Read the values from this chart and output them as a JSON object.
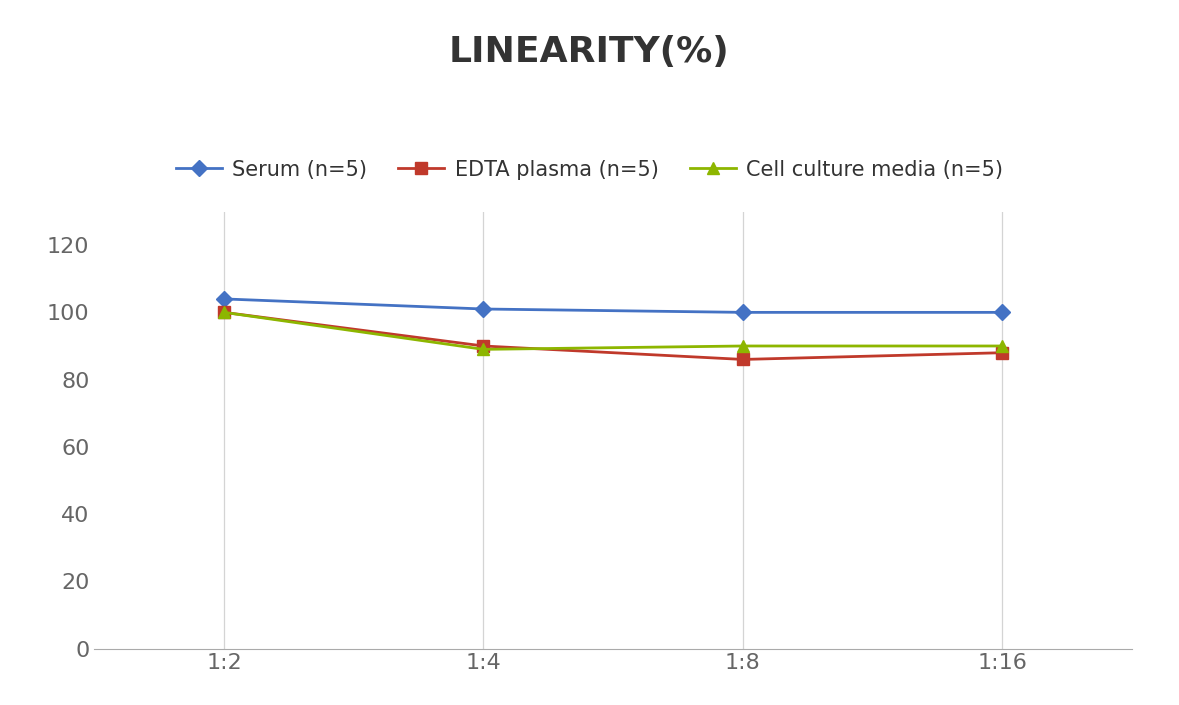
{
  "title": "LINEARITY(%)",
  "x_labels": [
    "1:2",
    "1:4",
    "1:8",
    "1:16"
  ],
  "x_positions": [
    0,
    1,
    2,
    3
  ],
  "series": [
    {
      "name": "Serum (n=5)",
      "values": [
        104,
        101,
        100,
        100
      ],
      "color": "#4472C4",
      "marker": "D",
      "linewidth": 2,
      "markersize": 8
    },
    {
      "name": "EDTA plasma (n=5)",
      "values": [
        100,
        90,
        86,
        88
      ],
      "color": "#C0392B",
      "marker": "s",
      "linewidth": 2,
      "markersize": 8
    },
    {
      "name": "Cell culture media (n=5)",
      "values": [
        100,
        89,
        90,
        90
      ],
      "color": "#8DB600",
      "marker": "^",
      "linewidth": 2,
      "markersize": 8
    }
  ],
  "ylim": [
    0,
    130
  ],
  "yticks": [
    0,
    20,
    40,
    60,
    80,
    100,
    120
  ],
  "background_color": "#ffffff",
  "title_fontsize": 26,
  "tick_fontsize": 16,
  "legend_fontsize": 15,
  "grid_color": "#d4d4d4",
  "grid_linewidth": 0.9
}
